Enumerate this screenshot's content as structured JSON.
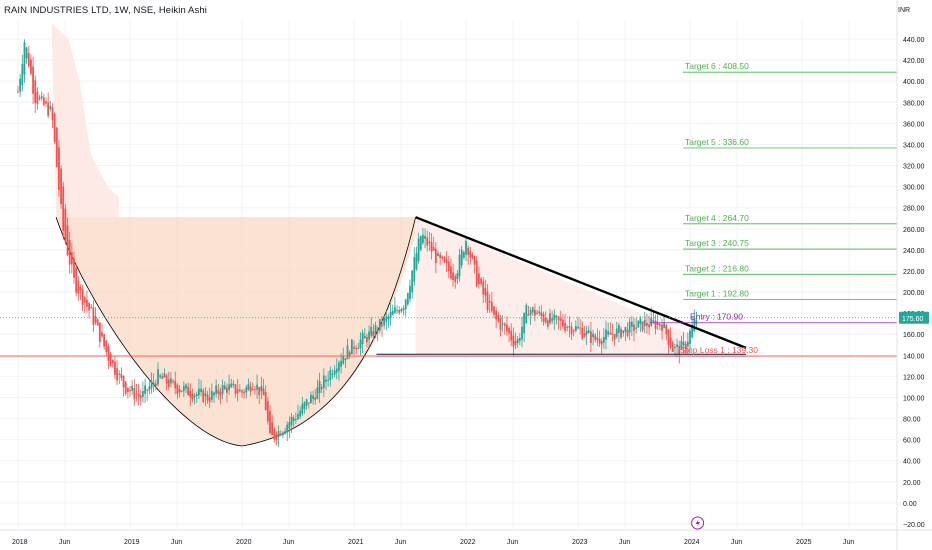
{
  "header": {
    "title": "RAIN INDUSTRIES LTD, 1W, NSE, Heikin Ashi",
    "currency": "INR"
  },
  "colors": {
    "up": "#26a69a",
    "down": "#ef5350",
    "target": "#4caf50",
    "entry": "#9c27b0",
    "stop": "#ef5350",
    "trendline": "#000000",
    "cup_fill": "#fbd8c4",
    "last_price_bg": "#26a69a"
  },
  "chart_data": {
    "type": "candlestick",
    "title": "RAIN INDUSTRIES LTD, 1W, NSE, Heikin Ashi",
    "ylim": [
      -25,
      470
    ],
    "x_ticks": [
      "2018",
      "Jun",
      "2019",
      "Jun",
      "2020",
      "Jun",
      "2021",
      "Jun",
      "2022",
      "Jun",
      "2023",
      "Jun",
      "2024",
      "Jun",
      "2025",
      "Jun"
    ],
    "x_tick_years": [
      2018.0,
      2018.42,
      2019.0,
      2019.42,
      2020.0,
      2020.42,
      2021.0,
      2021.42,
      2022.0,
      2022.42,
      2023.0,
      2023.42,
      2024.0,
      2024.42,
      2025.0,
      2025.42
    ],
    "y_ticks": [
      "440.00",
      "420.00",
      "400.00",
      "380.00",
      "360.00",
      "340.00",
      "320.00",
      "300.00",
      "280.00",
      "260.00",
      "240.00",
      "220.00",
      "200.00",
      "180.00",
      "160.00",
      "140.00",
      "120.00",
      "100.00",
      "80.00",
      "60.00",
      "40.00",
      "20.00",
      "0.00",
      "−20.00"
    ],
    "y_tick_values": [
      440,
      420,
      400,
      380,
      360,
      340,
      320,
      300,
      280,
      260,
      240,
      220,
      200,
      180,
      160,
      140,
      120,
      100,
      80,
      60,
      40,
      20,
      0,
      -20
    ],
    "price_path": [
      [
        2018.0,
        390
      ],
      [
        2018.06,
        440
      ],
      [
        2018.15,
        385
      ],
      [
        2018.3,
        370
      ],
      [
        2018.4,
        260
      ],
      [
        2018.5,
        210
      ],
      [
        2018.65,
        180
      ],
      [
        2018.8,
        140
      ],
      [
        2018.95,
        110
      ],
      [
        2019.1,
        100
      ],
      [
        2019.25,
        120
      ],
      [
        2019.4,
        110
      ],
      [
        2019.55,
        105
      ],
      [
        2019.7,
        100
      ],
      [
        2019.85,
        110
      ],
      [
        2020.0,
        105
      ],
      [
        2020.1,
        115
      ],
      [
        2020.2,
        100
      ],
      [
        2020.25,
        60
      ],
      [
        2020.35,
        70
      ],
      [
        2020.5,
        85
      ],
      [
        2020.7,
        110
      ],
      [
        2020.85,
        135
      ],
      [
        2021.0,
        150
      ],
      [
        2021.15,
        160
      ],
      [
        2021.3,
        175
      ],
      [
        2021.45,
        190
      ],
      [
        2021.6,
        255
      ],
      [
        2021.75,
        230
      ],
      [
        2021.9,
        215
      ],
      [
        2022.0,
        250
      ],
      [
        2022.1,
        210
      ],
      [
        2022.25,
        175
      ],
      [
        2022.35,
        165
      ],
      [
        2022.45,
        150
      ],
      [
        2022.55,
        185
      ],
      [
        2022.7,
        175
      ],
      [
        2022.85,
        170
      ],
      [
        2023.0,
        165
      ],
      [
        2023.15,
        155
      ],
      [
        2023.3,
        160
      ],
      [
        2023.45,
        165
      ],
      [
        2023.6,
        170
      ],
      [
        2023.75,
        170
      ],
      [
        2023.85,
        145
      ],
      [
        2023.95,
        148
      ],
      [
        2024.05,
        175
      ]
    ],
    "last_price": "175.60",
    "last_price_value": 175.6,
    "levels": [
      {
        "label": "Target 6 : 408.50",
        "value": 408.5,
        "kind": "target"
      },
      {
        "label": "Target 5 : 336.60",
        "value": 336.6,
        "kind": "target"
      },
      {
        "label": "Target 4 : 264.70",
        "value": 264.7,
        "kind": "target"
      },
      {
        "label": "Target 3 : 240.75",
        "value": 240.75,
        "kind": "target"
      },
      {
        "label": "Target 2 : 216.80",
        "value": 216.8,
        "kind": "target"
      },
      {
        "label": "Target 1 : 192.80",
        "value": 192.8,
        "kind": "target"
      },
      {
        "label": "Entry : 170.90",
        "value": 170.9,
        "kind": "entry"
      },
      {
        "label": "Stop Loss 1 : 139.30",
        "value": 139.3,
        "kind": "stop"
      }
    ],
    "trendline": [
      [
        2021.55,
        271
      ],
      [
        2024.5,
        147
      ]
    ],
    "support": 141,
    "cup_rim": 271,
    "cup_bottom": 54
  }
}
